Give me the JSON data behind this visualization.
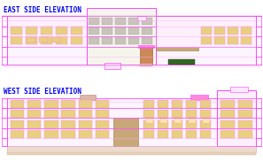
{
  "bg_color": "#ffffff",
  "title1": "EAST SIDE ELEVATION",
  "title2": "WEST SIDE ELEVATION",
  "title_color": "#0000ee",
  "title_fontsize": 5.5,
  "pink": "#ff88dd",
  "magenta": "#ff44ff",
  "tan": "#d4b896",
  "yellow_win": "#e8d080",
  "gray_win": "#c8c4b8",
  "dark_brown": "#8B5A2B",
  "light_brown": "#c8a878",
  "green": "#224400",
  "white": "#ffffff",
  "line_color": "#ffaaff",
  "border_line": "#dd66dd"
}
